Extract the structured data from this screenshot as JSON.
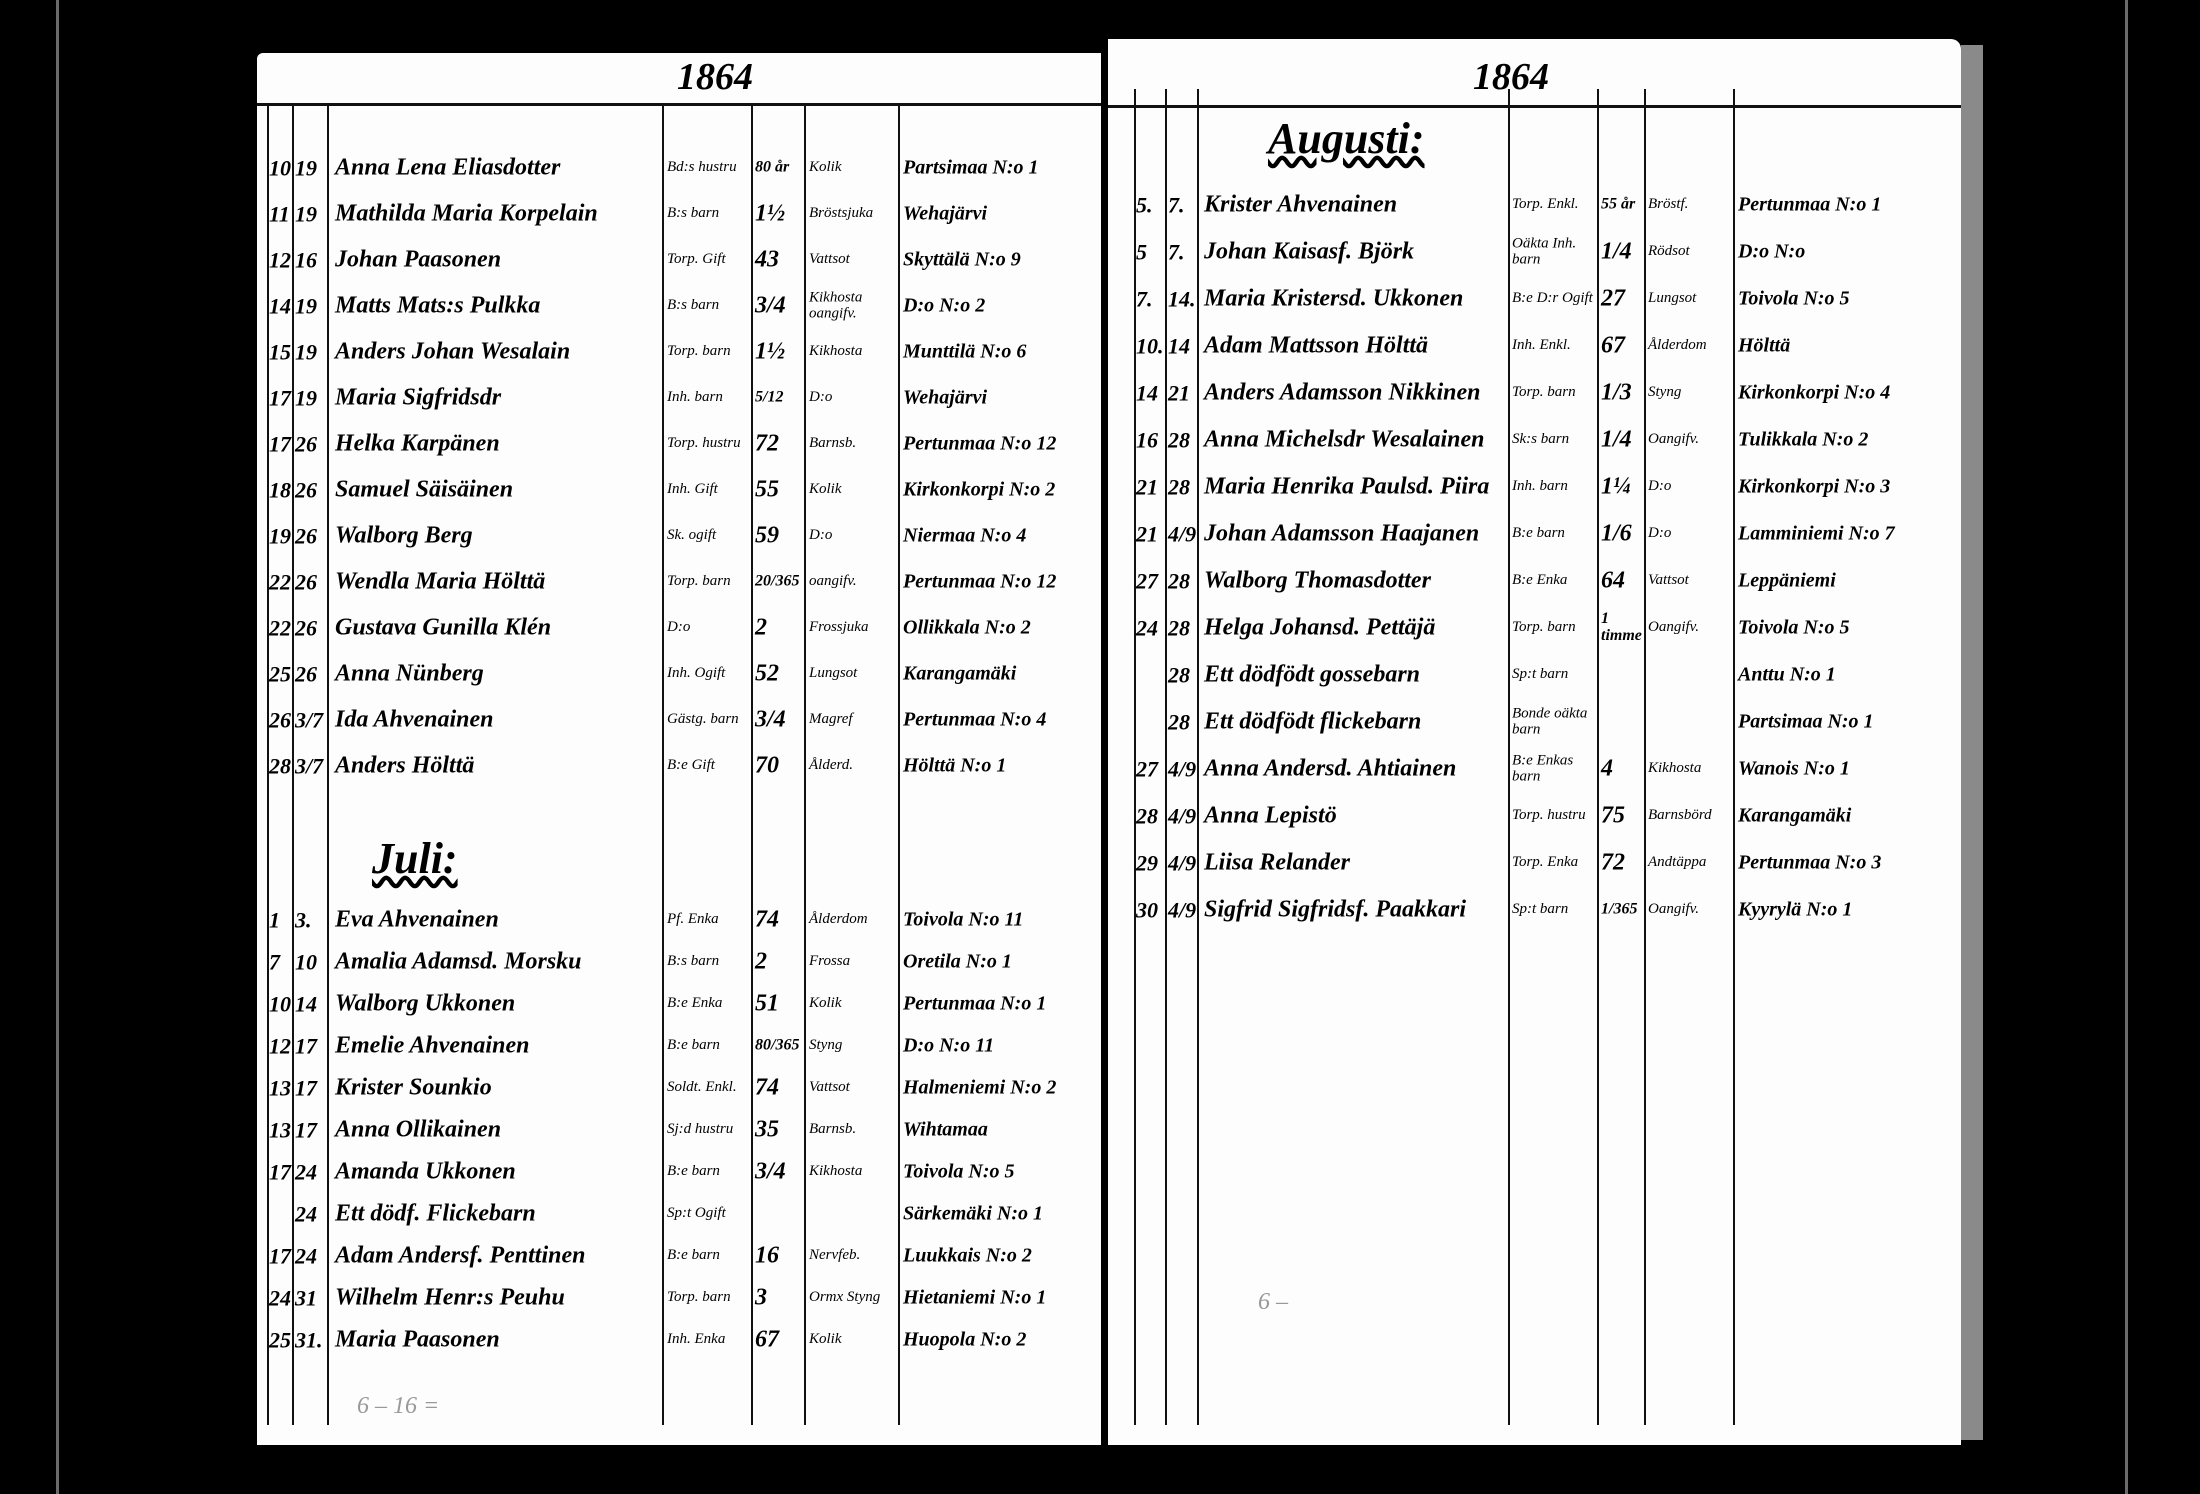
{
  "left_page": {
    "year": "1864",
    "rows": [
      [
        "10",
        "19",
        "Anna Lena Eliasdotter",
        "Bd:s hustru",
        "80 år",
        "Kolik",
        "Partsimaa N:o 1"
      ],
      [
        "11",
        "19",
        "Mathilda Maria Korpelain",
        "B:s barn",
        "1½",
        "Bröstsjuka",
        "Wehajärvi"
      ],
      [
        "12",
        "16",
        "Johan Paasonen",
        "Torp. Gift",
        "43",
        "Vattsot",
        "Skyttälä N:o 9"
      ],
      [
        "14",
        "19",
        "Matts Mats:s Pulkka",
        "B:s barn",
        "3/4",
        "Kikhosta oangifv.",
        "D:o N:o 2"
      ],
      [
        "15",
        "19",
        "Anders Johan Wesalain",
        "Torp. barn",
        "1½",
        "Kikhosta",
        "Munttilä N:o 6"
      ],
      [
        "17",
        "19",
        "Maria Sigfridsdr",
        "Inh. barn",
        "5/12",
        "D:o",
        "Wehajärvi"
      ],
      [
        "17",
        "26",
        "Helka Karpänen",
        "Torp. hustru",
        "72",
        "Barnsb.",
        "Pertunmaa N:o 12"
      ],
      [
        "18",
        "26",
        "Samuel Säisäinen",
        "Inh. Gift",
        "55",
        "Kolik",
        "Kirkonkorpi N:o 2"
      ],
      [
        "19",
        "26",
        "Walborg Berg",
        "Sk. ogift",
        "59",
        "D:o",
        "Niermaa N:o 4"
      ],
      [
        "22",
        "26",
        "Wendla Maria Hölttä",
        "Torp. barn",
        "20/365",
        "oangifv.",
        "Pertunmaa N:o 12"
      ],
      [
        "22",
        "26",
        "Gustava Gunilla Klén",
        "D:o",
        "2",
        "Frossjuka",
        "Ollikkala N:o 2"
      ],
      [
        "25",
        "26",
        "Anna Nünberg",
        "Inh. Ogift",
        "52",
        "Lungsot",
        "Karangamäki"
      ],
      [
        "26",
        "3/7",
        "Ida Ahvenainen",
        "Gästg. barn",
        "3/4",
        "Magref",
        "Pertunmaa N:o 4"
      ],
      [
        "28",
        "3/7",
        "Anders Hölttä",
        "B:e Gift",
        "70",
        "Ålderd.",
        "Hölttä N:o 1"
      ]
    ],
    "month_heading": "Juli:",
    "july_rows": [
      [
        "1",
        "3.",
        "Eva Ahvenainen",
        "Pf. Enka",
        "74",
        "Ålderdom",
        "Toivola N:o 11"
      ],
      [
        "7",
        "10",
        "Amalia Adamsd. Morsku",
        "B:s barn",
        "2",
        "Frossa",
        "Oretila N:o 1"
      ],
      [
        "10",
        "14",
        "Walborg Ukkonen",
        "B:e Enka",
        "51",
        "Kolik",
        "Pertunmaa N:o 1"
      ],
      [
        "12",
        "17",
        "Emelie Ahvenainen",
        "B:e barn",
        "80/365",
        "Styng",
        "D:o N:o 11"
      ],
      [
        "13",
        "17",
        "Krister Sounkio",
        "Soldt. Enkl.",
        "74",
        "Vattsot",
        "Halmeniemi N:o 2"
      ],
      [
        "13",
        "17",
        "Anna Ollikainen",
        "Sj:d hustru",
        "35",
        "Barnsb.",
        "Wihtamaa"
      ],
      [
        "17",
        "24",
        "Amanda Ukkonen",
        "B:e barn",
        "3/4",
        "Kikhosta",
        "Toivola N:o 5"
      ],
      [
        "",
        "24",
        "Ett dödf. Flickebarn",
        "Sp:t Ogift",
        "",
        "",
        "Särkemäki N:o 1"
      ],
      [
        "17",
        "24",
        "Adam Andersf. Penttinen",
        "B:e barn",
        "16",
        "Nervfeb.",
        "Luukkais N:o 2"
      ],
      [
        "24",
        "31",
        "Wilhelm Henr:s Peuhu",
        "Torp. barn",
        "3",
        "Ormx Styng",
        "Hietaniemi N:o 1"
      ],
      [
        "25",
        "31.",
        "Maria Paasonen",
        "Inh. Enka",
        "67",
        "Kolik",
        "Huopola N:o 2"
      ]
    ],
    "pencil_note": "6 – 16 ="
  },
  "right_page": {
    "year": "1864",
    "month_heading": "Augusti:",
    "rows": [
      [
        "5.",
        "7.",
        "Krister Ahvenainen",
        "Torp. Enkl.",
        "55 år",
        "Bröstf.",
        "Pertunmaa N:o 1"
      ],
      [
        "5",
        "7.",
        "Johan Kaisasf. Björk",
        "Oäkta Inh. barn",
        "1/4",
        "Rödsot",
        "D:o N:o"
      ],
      [
        "7.",
        "14.",
        "Maria Kristersd. Ukkonen",
        "B:e D:r Ogift",
        "27",
        "Lungsot",
        "Toivola N:o 5"
      ],
      [
        "10.",
        "14",
        "Adam Mattsson Hölttä",
        "Inh. Enkl.",
        "67",
        "Ålderdom",
        "Hölttä"
      ],
      [
        "14",
        "21",
        "Anders Adamsson Nikkinen",
        "Torp. barn",
        "1/3",
        "Styng",
        "Kirkonkorpi N:o 4"
      ],
      [
        "16",
        "28",
        "Anna Michelsdr Wesalainen",
        "Sk:s barn",
        "1/4",
        "Oangifv.",
        "Tulikkala N:o 2"
      ],
      [
        "21",
        "28",
        "Maria Henrika Paulsd. Piira",
        "Inh. barn",
        "1¼",
        "D:o",
        "Kirkonkorpi N:o 3"
      ],
      [
        "21",
        "4/9",
        "Johan Adamsson Haajanen",
        "B:e barn",
        "1/6",
        "D:o",
        "Lamminiemi N:o 7"
      ],
      [
        "27",
        "28",
        "Walborg Thomasdotter",
        "B:e Enka",
        "64",
        "Vattsot",
        "Leppäniemi"
      ],
      [
        "24",
        "28",
        "Helga Johansd. Pettäjä",
        "Torp. barn",
        "1 timme",
        "Oangifv.",
        "Toivola N:o 5"
      ],
      [
        "",
        "28",
        "Ett dödfödt gossebarn",
        "Sp:t barn",
        "",
        "",
        "Anttu N:o 1"
      ],
      [
        "",
        "28",
        "Ett dödfödt flickebarn",
        "Bonde oäkta barn",
        "",
        "",
        "Partsimaa N:o 1"
      ],
      [
        "27",
        "4/9",
        "Anna Andersd. Ahtiainen",
        "B:e Enkas barn",
        "4",
        "Kikhosta",
        "Wanois N:o 1"
      ],
      [
        "28",
        "4/9",
        "Anna Lepistö",
        "Torp. hustru",
        "75",
        "Barnsbörd",
        "Karangamäki"
      ],
      [
        "29",
        "4/9",
        "Liisa Relander",
        "Torp. Enka",
        "72",
        "Andtäppa",
        "Pertunmaa N:o 3"
      ],
      [
        "30",
        "4/9",
        "Sigfrid Sigfridsf. Paakkari",
        "Sp:t barn",
        "1/365",
        "Oangifv.",
        "Kyyrylä N:o 1"
      ]
    ],
    "pencil_note": "6 –"
  }
}
